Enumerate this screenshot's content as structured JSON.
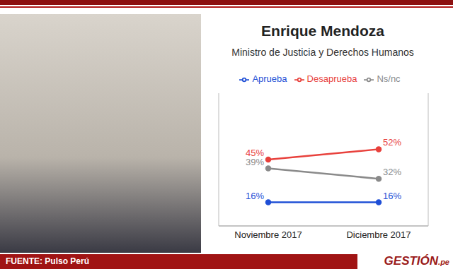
{
  "chart_data": {
    "type": "line",
    "title": "Enrique Mendoza",
    "subtitle": "Ministro de Justicia y Derechos Humanos",
    "source": "FUENTE: Pulso Perú",
    "brand": "GESTIÓN.pe",
    "categories": [
      "Noviembre 2017",
      "Diciembre 2017"
    ],
    "series": [
      {
        "name": "Aprueba",
        "color": "#1f4fd6",
        "values": [
          16,
          16
        ],
        "value_labels": [
          "16%",
          "16%"
        ]
      },
      {
        "name": "Desaprueba",
        "color": "#e8413c",
        "values": [
          45,
          52
        ],
        "value_labels": [
          "45%",
          "52%"
        ]
      },
      {
        "name": "Ns/nc",
        "color": "#8a8a8a",
        "values": [
          39,
          32
        ],
        "value_labels": [
          "39%",
          "32%"
        ]
      }
    ],
    "ylim": [
      0,
      90
    ],
    "tick_labels": "x",
    "legend": "top",
    "data_labels": true,
    "marker": "circle"
  }
}
